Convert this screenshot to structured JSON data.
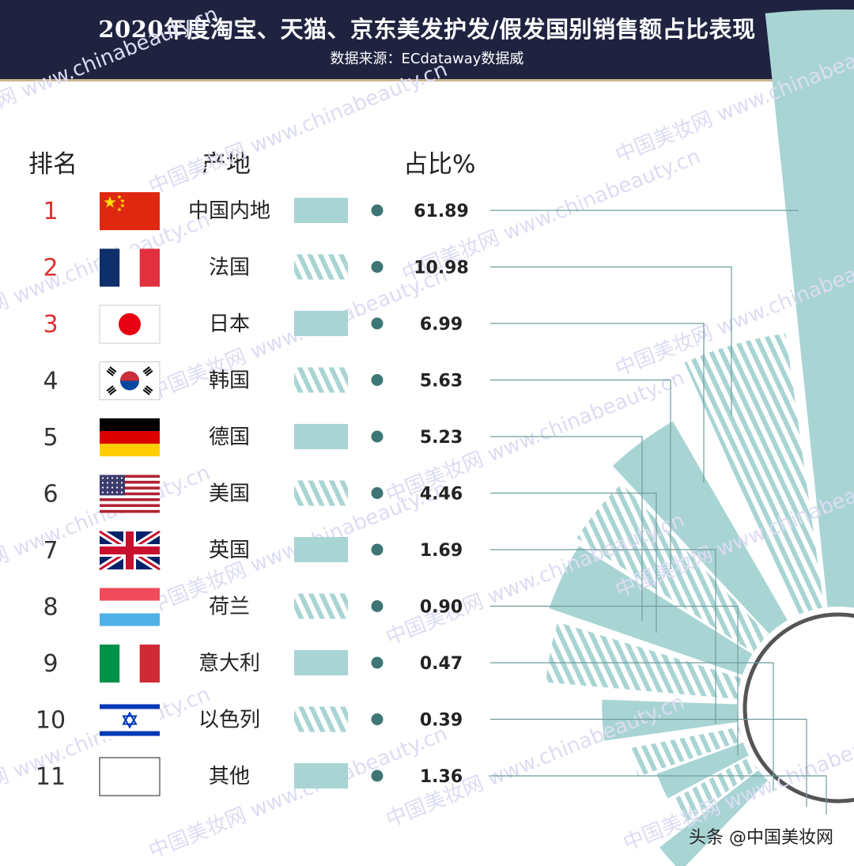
{
  "header": {
    "title": "2020年度淘宝、天猫、京东美发护发/假发国别销售额占比表现",
    "subtitle": "数据来源：ECdataway数据威"
  },
  "columns": {
    "rank": "排名",
    "origin": "产地",
    "share": "占比%"
  },
  "chart_data": {
    "type": "table",
    "title": "2020年度淘宝、天猫、京东美发护发/假发国别销售额占比表现",
    "source": "数据来源：ECdataway数据威",
    "columns": [
      "排名",
      "产地",
      "占比%"
    ],
    "rows": [
      {
        "rank": "1",
        "origin": "中国内地",
        "value": 61.89,
        "label": "61.89",
        "flag": "china-flag-icon",
        "swatch": "solid"
      },
      {
        "rank": "2",
        "origin": "法国",
        "value": 10.98,
        "label": "10.98",
        "flag": "france-flag-icon",
        "swatch": "hatched"
      },
      {
        "rank": "3",
        "origin": "日本",
        "value": 6.99,
        "label": "6.99",
        "flag": "japan-flag-icon",
        "swatch": "solid"
      },
      {
        "rank": "4",
        "origin": "韩国",
        "value": 5.63,
        "label": "5.63",
        "flag": "korea-flag-icon",
        "swatch": "hatched"
      },
      {
        "rank": "5",
        "origin": "德国",
        "value": 5.23,
        "label": "5.23",
        "flag": "germany-flag-icon",
        "swatch": "solid"
      },
      {
        "rank": "6",
        "origin": "美国",
        "value": 4.46,
        "label": "4.46",
        "flag": "usa-flag-icon",
        "swatch": "hatched"
      },
      {
        "rank": "7",
        "origin": "英国",
        "value": 1.69,
        "label": "1.69",
        "flag": "uk-flag-icon",
        "swatch": "solid"
      },
      {
        "rank": "8",
        "origin": "荷兰",
        "value": 0.9,
        "label": "0.90",
        "flag": "netherlands-flag-icon",
        "swatch": "hatched"
      },
      {
        "rank": "9",
        "origin": "意大利",
        "value": 0.47,
        "label": "0.47",
        "flag": "italy-flag-icon",
        "swatch": "solid"
      },
      {
        "rank": "10",
        "origin": "以色列",
        "value": 0.39,
        "label": "0.39",
        "flag": "israel-flag-icon",
        "swatch": "hatched"
      },
      {
        "rank": "11",
        "origin": "其他",
        "value": 1.36,
        "label": "1.36",
        "flag": "blank-flag-icon",
        "swatch": "solid"
      }
    ],
    "radial_chart": "sunburst-style sectors, radius proportional to share",
    "highlight_ranks": [
      "1",
      "2",
      "3"
    ]
  },
  "colors": {
    "header_bg": "#1f2340",
    "header_line": "#c9b58e",
    "teal": "#a9d4d4",
    "dot": "#3e7575",
    "connector": "#6f9c9c",
    "rank_highlight": "#e0302f",
    "rank_normal": "#333333",
    "center_ring": "#555555"
  },
  "watermark": "中国美妆网 www.chinabeauty.cn",
  "footer": {
    "credit": "头条 @中国美妆网"
  }
}
